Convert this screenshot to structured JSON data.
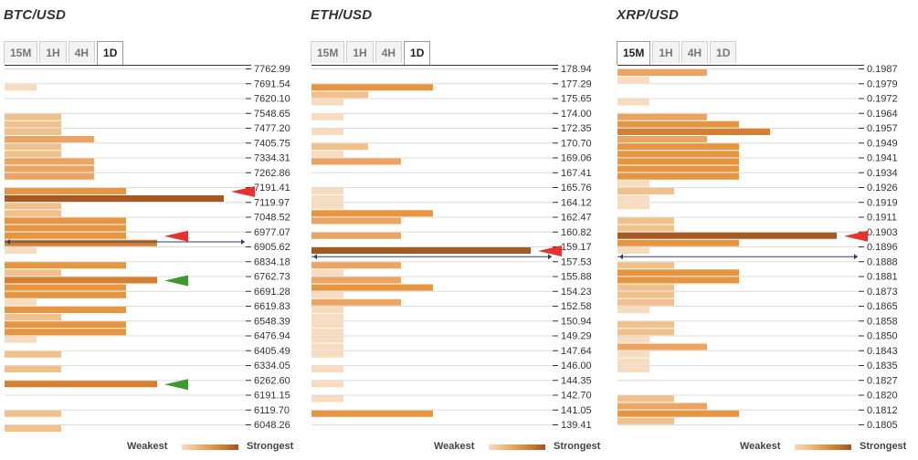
{
  "legend": {
    "weak": "Weakest",
    "strong": "Strongest"
  },
  "chart_data": [
    {
      "type": "bar",
      "title": "BTC/USD",
      "tabs": [
        "15M",
        "1H",
        "4H",
        "1D"
      ],
      "active_tab": "1D",
      "levels": [
        "7762.99",
        "7691.54",
        "7620.10",
        "7548.65",
        "7477.20",
        "7405.75",
        "7334.31",
        "7262.86",
        "7191.41",
        "7119.97",
        "7048.52",
        "6977.07",
        "6905.62",
        "6834.18",
        "6762.73",
        "6691.28",
        "6619.83",
        "6548.39",
        "6476.94",
        "6405.49",
        "6334.05",
        "6262.60",
        "6191.15",
        "6119.70",
        "6048.26"
      ],
      "current_price_index": 12,
      "arrows": [
        {
          "level_index": 8,
          "color": "red"
        },
        {
          "level_index": 11,
          "color": "red"
        },
        {
          "level_index": 14,
          "color": "green"
        },
        {
          "level_index": 21,
          "color": "green"
        }
      ],
      "bars": [
        [],
        [
          1
        ],
        [],
        [
          2,
          2
        ],
        [
          2,
          3
        ],
        [
          2,
          2
        ],
        [
          3,
          3
        ],
        [
          3
        ],
        [
          4,
          6
        ],
        [
          2,
          2
        ],
        [
          4,
          4
        ],
        [
          4,
          5
        ],
        [
          1
        ],
        [
          4,
          2
        ],
        [
          5,
          4
        ],
        [
          4,
          1
        ],
        [
          4,
          2
        ],
        [
          4,
          4
        ],
        [
          1
        ],
        [
          2
        ],
        [
          2
        ],
        [
          5
        ],
        [],
        [
          2
        ],
        [
          2
        ]
      ]
    },
    {
      "type": "bar",
      "title": "ETH/USD",
      "tabs": [
        "15M",
        "1H",
        "4H",
        "1D"
      ],
      "active_tab": "1D",
      "levels": [
        "178.94",
        "177.29",
        "175.65",
        "174.00",
        "172.35",
        "170.70",
        "169.06",
        "167.41",
        "165.76",
        "164.12",
        "162.47",
        "160.82",
        "159.17",
        "157.53",
        "155.88",
        "154.23",
        "152.58",
        "150.94",
        "149.29",
        "147.64",
        "146.00",
        "144.35",
        "142.70",
        "141.05",
        "139.41"
      ],
      "current_price_index": 13,
      "arrows": [
        {
          "level_index": 12,
          "color": "red"
        }
      ],
      "bars": [
        [],
        [
          4,
          2
        ],
        [
          1
        ],
        [
          1
        ],
        [
          1
        ],
        [
          2,
          1
        ],
        [
          3
        ],
        [],
        [
          1,
          1
        ],
        [
          1,
          4
        ],
        [
          3
        ],
        [
          3
        ],
        [
          6
        ],
        [
          3,
          1
        ],
        [
          3,
          4
        ],
        [
          1,
          3
        ],
        [
          1,
          1
        ],
        [
          1,
          1
        ],
        [
          1,
          1
        ],
        [
          1
        ],
        [
          1
        ],
        [
          1
        ],
        [
          1
        ],
        [
          4
        ],
        []
      ]
    },
    {
      "type": "bar",
      "title": "XRP/USD",
      "tabs": [
        "15M",
        "1H",
        "4H",
        "1D"
      ],
      "active_tab": "15M",
      "levels": [
        "0.1987",
        "0.1979",
        "0.1972",
        "0.1964",
        "0.1957",
        "0.1949",
        "0.1941",
        "0.1934",
        "0.1926",
        "0.1919",
        "0.1911",
        "0.1903",
        "0.1896",
        "0.1888",
        "0.1881",
        "0.1873",
        "0.1865",
        "0.1858",
        "0.1850",
        "0.1843",
        "0.1835",
        "0.1827",
        "0.1820",
        "0.1812",
        "0.1805"
      ],
      "current_price_index": 13,
      "arrows": [
        {
          "level_index": 11,
          "color": "red"
        }
      ],
      "bars": [
        [
          3,
          1
        ],
        [],
        [
          1
        ],
        [
          3,
          4
        ],
        [
          5,
          3
        ],
        [
          4,
          4
        ],
        [
          4,
          4
        ],
        [
          4,
          1
        ],
        [
          2,
          1
        ],
        [
          1
        ],
        [
          2,
          2
        ],
        [
          6,
          4
        ],
        [
          1
        ],
        [
          2,
          4
        ],
        [
          4,
          2
        ],
        [
          2,
          2
        ],
        [
          1
        ],
        [
          2,
          2
        ],
        [
          1,
          3
        ],
        [
          1,
          1
        ],
        [
          1
        ],
        [],
        [
          2,
          3
        ],
        [
          4,
          2
        ],
        []
      ]
    }
  ]
}
